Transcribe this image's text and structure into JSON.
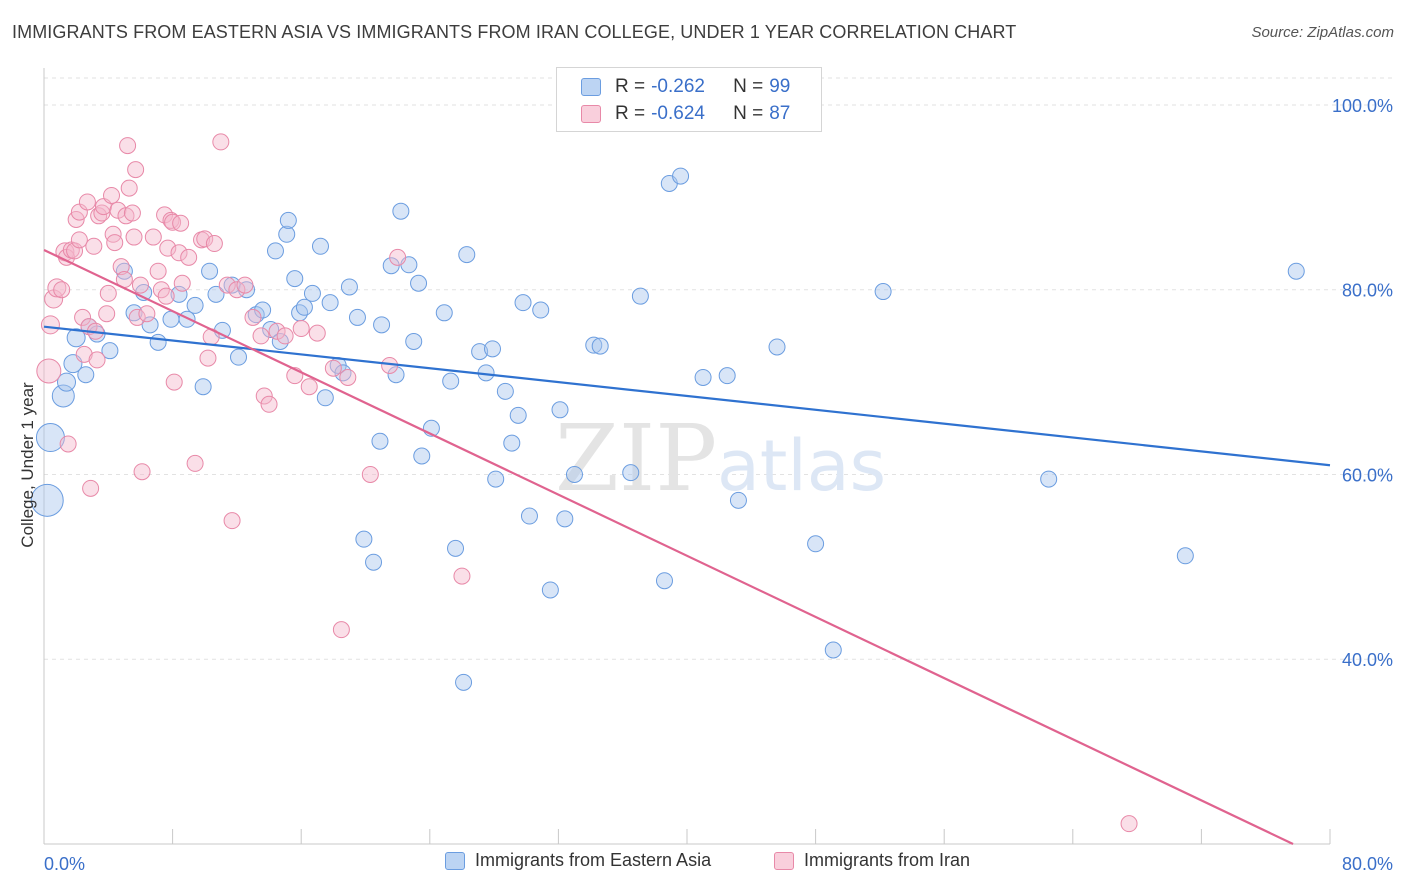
{
  "title": "IMMIGRANTS FROM EASTERN ASIA VS IMMIGRANTS FROM IRAN COLLEGE, UNDER 1 YEAR CORRELATION CHART",
  "source": "Source: ZipAtlas.com",
  "watermark": {
    "zip": "ZIP",
    "atlas": "atlas"
  },
  "legend": {
    "rows": [
      {
        "r_label": "R =",
        "r_value": "-0.262",
        "n_label": "N =",
        "n_value": "99"
      },
      {
        "r_label": "R =",
        "r_value": "-0.624",
        "n_label": "N =",
        "n_value": "87"
      }
    ]
  },
  "chart_data": {
    "type": "scatter",
    "title": "IMMIGRANTS FROM EASTERN ASIA VS IMMIGRANTS FROM IRAN COLLEGE, UNDER 1 YEAR CORRELATION CHART",
    "xlabel": "",
    "ylabel": "College, Under 1 year",
    "xlim": [
      0,
      80
    ],
    "ylim": [
      20,
      104
    ],
    "x_tick_labels": [
      "0.0%",
      "80.0%"
    ],
    "y_ticks": [
      40,
      60,
      80,
      100
    ],
    "y_tick_labels": [
      "40.0%",
      "60.0%",
      "80.0%",
      "100.0%"
    ],
    "grid": true,
    "legend_position": "top-center",
    "series": [
      {
        "name": "Immigrants from Eastern Asia",
        "color": "#a9c6ee",
        "stroke": "#6b9de0",
        "line_color": "#2f72d0",
        "trend": {
          "x0": 0,
          "y0": 76.0,
          "x1": 80,
          "y1": 61.0
        },
        "points": [
          [
            0.4,
            64.0,
            14
          ],
          [
            0.2,
            57.2,
            16
          ],
          [
            1.2,
            68.5,
            11
          ],
          [
            1.4,
            70.0,
            9
          ],
          [
            1.8,
            72.0,
            9
          ],
          [
            2.0,
            74.8,
            9
          ],
          [
            2.6,
            70.8,
            8
          ],
          [
            2.8,
            76.0,
            8
          ],
          [
            3.3,
            75.2,
            8
          ],
          [
            4.1,
            73.4,
            8
          ],
          [
            5.0,
            82.0,
            8
          ],
          [
            5.6,
            77.5,
            8
          ],
          [
            6.2,
            79.7,
            8
          ],
          [
            6.6,
            76.2,
            8
          ],
          [
            7.1,
            74.3,
            8
          ],
          [
            7.9,
            76.8,
            8
          ],
          [
            8.4,
            79.5,
            8
          ],
          [
            8.9,
            76.8,
            8
          ],
          [
            9.4,
            78.3,
            8
          ],
          [
            9.9,
            69.5,
            8
          ],
          [
            10.3,
            82.0,
            8
          ],
          [
            10.7,
            79.5,
            8
          ],
          [
            11.1,
            75.6,
            8
          ],
          [
            11.7,
            80.5,
            8
          ],
          [
            12.1,
            72.7,
            8
          ],
          [
            12.6,
            80.0,
            8
          ],
          [
            13.2,
            77.3,
            8
          ],
          [
            13.6,
            77.8,
            8
          ],
          [
            14.1,
            75.7,
            8
          ],
          [
            14.4,
            84.2,
            8
          ],
          [
            14.7,
            74.4,
            8
          ],
          [
            15.1,
            86.0,
            8
          ],
          [
            15.2,
            87.5,
            8
          ],
          [
            15.6,
            81.2,
            8
          ],
          [
            15.9,
            77.5,
            8
          ],
          [
            16.2,
            78.1,
            8
          ],
          [
            16.7,
            79.6,
            8
          ],
          [
            17.2,
            84.7,
            8
          ],
          [
            17.5,
            68.3,
            8
          ],
          [
            17.8,
            78.6,
            8
          ],
          [
            18.3,
            71.8,
            8
          ],
          [
            18.6,
            71.0,
            8
          ],
          [
            19.0,
            80.3,
            8
          ],
          [
            19.5,
            77.0,
            8
          ],
          [
            19.9,
            53.0,
            8
          ],
          [
            20.5,
            50.5,
            8
          ],
          [
            20.9,
            63.6,
            8
          ],
          [
            21.0,
            76.2,
            8
          ],
          [
            21.6,
            82.6,
            8
          ],
          [
            21.9,
            70.8,
            8
          ],
          [
            22.2,
            88.5,
            8
          ],
          [
            22.7,
            82.7,
            8
          ],
          [
            23.0,
            74.4,
            8
          ],
          [
            23.3,
            80.7,
            8
          ],
          [
            23.5,
            62.0,
            8
          ],
          [
            24.1,
            65.0,
            8
          ],
          [
            24.9,
            77.5,
            8
          ],
          [
            25.3,
            70.1,
            8
          ],
          [
            25.6,
            52.0,
            8
          ],
          [
            26.1,
            37.5,
            8
          ],
          [
            26.3,
            83.8,
            8
          ],
          [
            27.1,
            73.3,
            8
          ],
          [
            27.5,
            71.0,
            8
          ],
          [
            27.9,
            73.6,
            8
          ],
          [
            28.1,
            59.5,
            8
          ],
          [
            28.7,
            69.0,
            8
          ],
          [
            29.1,
            63.4,
            8
          ],
          [
            29.5,
            66.4,
            8
          ],
          [
            29.8,
            78.6,
            8
          ],
          [
            30.2,
            55.5,
            8
          ],
          [
            30.9,
            77.8,
            8
          ],
          [
            31.5,
            47.5,
            8
          ],
          [
            32.1,
            67.0,
            8
          ],
          [
            32.4,
            55.2,
            8
          ],
          [
            33.0,
            60.0,
            8
          ],
          [
            34.2,
            74.0,
            8
          ],
          [
            34.6,
            73.9,
            8
          ],
          [
            36.0,
            98.0,
            8
          ],
          [
            36.5,
            60.2,
            8
          ],
          [
            37.1,
            79.3,
            8
          ],
          [
            38.6,
            48.5,
            8
          ],
          [
            38.9,
            91.5,
            8
          ],
          [
            39.6,
            92.3,
            8
          ],
          [
            41.0,
            70.5,
            8
          ],
          [
            42.5,
            70.7,
            8
          ],
          [
            43.2,
            57.2,
            8
          ],
          [
            45.6,
            73.8,
            8
          ],
          [
            48.0,
            52.5,
            8
          ],
          [
            49.1,
            41.0,
            8
          ],
          [
            52.2,
            79.8,
            8
          ],
          [
            62.5,
            59.5,
            8
          ],
          [
            71.0,
            51.2,
            8
          ],
          [
            77.9,
            82.0,
            8
          ]
        ]
      },
      {
        "name": "Immigrants from Iran",
        "color": "#f5b8cb",
        "stroke": "#e889a8",
        "line_color": "#e0638f",
        "trend": {
          "x0": 0,
          "y0": 84.3,
          "x1": 77.7,
          "y1": 20.0
        },
        "points": [
          [
            0.3,
            71.2,
            12
          ],
          [
            0.4,
            76.2,
            9
          ],
          [
            0.6,
            79.0,
            9
          ],
          [
            0.8,
            80.2,
            9
          ],
          [
            1.1,
            80.0,
            8
          ],
          [
            1.3,
            84.1,
            9
          ],
          [
            1.4,
            83.5,
            8
          ],
          [
            1.5,
            63.3,
            8
          ],
          [
            1.7,
            84.3,
            8
          ],
          [
            1.9,
            84.2,
            8
          ],
          [
            2.0,
            87.6,
            8
          ],
          [
            2.2,
            88.4,
            8
          ],
          [
            2.2,
            85.4,
            8
          ],
          [
            2.4,
            77.0,
            8
          ],
          [
            2.5,
            73.0,
            8
          ],
          [
            2.7,
            89.5,
            8
          ],
          [
            2.8,
            76.0,
            8
          ],
          [
            2.9,
            58.5,
            8
          ],
          [
            3.1,
            84.7,
            8
          ],
          [
            3.2,
            75.5,
            8
          ],
          [
            3.3,
            72.4,
            8
          ],
          [
            3.4,
            88.0,
            8
          ],
          [
            3.6,
            88.3,
            8
          ],
          [
            3.7,
            89.0,
            8
          ],
          [
            3.9,
            77.4,
            8
          ],
          [
            4.0,
            79.6,
            8
          ],
          [
            4.2,
            90.2,
            8
          ],
          [
            4.3,
            86.0,
            8
          ],
          [
            4.4,
            85.1,
            8
          ],
          [
            4.6,
            88.6,
            8
          ],
          [
            4.8,
            82.5,
            8
          ],
          [
            5.0,
            81.1,
            8
          ],
          [
            5.1,
            88.0,
            8
          ],
          [
            5.2,
            95.6,
            8
          ],
          [
            5.3,
            91.0,
            8
          ],
          [
            5.5,
            88.3,
            8
          ],
          [
            5.6,
            85.7,
            8
          ],
          [
            5.7,
            93.0,
            8
          ],
          [
            5.8,
            77.0,
            8
          ],
          [
            6.0,
            80.5,
            8
          ],
          [
            6.1,
            60.3,
            8
          ],
          [
            6.4,
            77.4,
            8
          ],
          [
            6.8,
            85.7,
            8
          ],
          [
            7.1,
            82.0,
            8
          ],
          [
            7.3,
            80.0,
            8
          ],
          [
            7.5,
            88.1,
            8
          ],
          [
            7.6,
            79.3,
            8
          ],
          [
            7.7,
            84.5,
            8
          ],
          [
            7.9,
            87.5,
            8
          ],
          [
            8.0,
            87.3,
            8
          ],
          [
            8.1,
            70.0,
            8
          ],
          [
            8.4,
            84.0,
            8
          ],
          [
            8.5,
            87.2,
            8
          ],
          [
            8.6,
            80.7,
            8
          ],
          [
            9.0,
            83.5,
            8
          ],
          [
            9.4,
            61.2,
            8
          ],
          [
            9.8,
            85.4,
            8
          ],
          [
            10.0,
            85.5,
            8
          ],
          [
            10.2,
            72.6,
            8
          ],
          [
            10.4,
            74.9,
            8
          ],
          [
            10.6,
            85.0,
            8
          ],
          [
            11.0,
            96.0,
            8
          ],
          [
            11.4,
            80.5,
            8
          ],
          [
            11.7,
            55.0,
            8
          ],
          [
            12.0,
            80.0,
            8
          ],
          [
            12.5,
            80.5,
            8
          ],
          [
            13.0,
            77.0,
            8
          ],
          [
            13.5,
            75.0,
            8
          ],
          [
            13.7,
            68.5,
            8
          ],
          [
            14.0,
            67.6,
            8
          ],
          [
            14.5,
            75.5,
            8
          ],
          [
            15.0,
            75.0,
            8
          ],
          [
            15.6,
            70.7,
            8
          ],
          [
            16.0,
            75.8,
            8
          ],
          [
            16.5,
            69.5,
            8
          ],
          [
            17.0,
            75.3,
            8
          ],
          [
            18.0,
            71.5,
            8
          ],
          [
            18.5,
            43.2,
            8
          ],
          [
            18.9,
            70.5,
            8
          ],
          [
            20.3,
            60.0,
            8
          ],
          [
            21.5,
            71.8,
            8
          ],
          [
            22.0,
            83.5,
            8
          ],
          [
            26.0,
            49.0,
            8
          ],
          [
            67.5,
            22.2,
            8
          ]
        ]
      }
    ]
  }
}
